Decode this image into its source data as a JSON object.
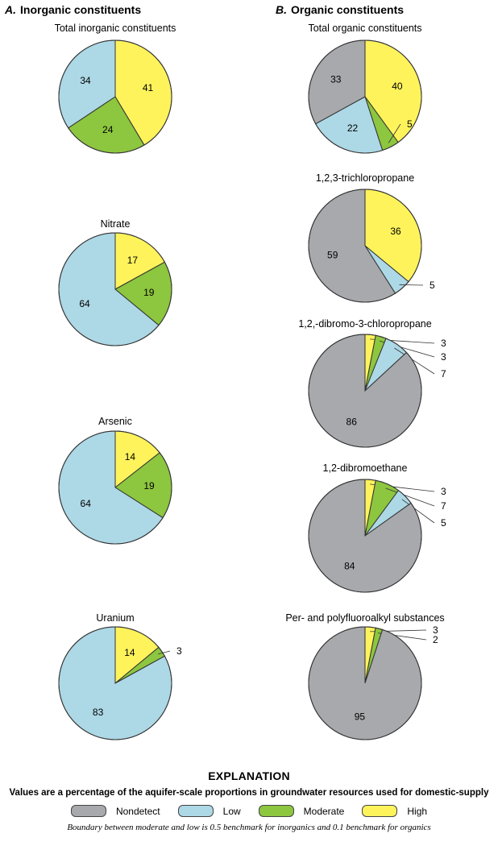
{
  "panels": {
    "a": {
      "letter": "A.",
      "title": "Inorganic constituents"
    },
    "b": {
      "letter": "B.",
      "title": "Organic constituents"
    }
  },
  "category_colors": {
    "Nondetect": "#a7a9ac",
    "Low": "#add8e6",
    "Moderate": "#8dc63f",
    "High": "#fff35c"
  },
  "chart_data": [
    {
      "type": "pie",
      "panel": "a",
      "title": "Total inorganic constituents",
      "slices": [
        {
          "category": "High",
          "value": 41,
          "label": "41"
        },
        {
          "category": "Moderate",
          "value": 24,
          "label": "24"
        },
        {
          "category": "Low",
          "value": 34,
          "label": "34"
        },
        {
          "category": "Nondetect",
          "value": 0,
          "label": ""
        }
      ]
    },
    {
      "type": "pie",
      "panel": "a",
      "title": "Nitrate",
      "slices": [
        {
          "category": "High",
          "value": 17,
          "label": "17"
        },
        {
          "category": "Moderate",
          "value": 19,
          "label": "19"
        },
        {
          "category": "Low",
          "value": 64,
          "label": "64"
        }
      ]
    },
    {
      "type": "pie",
      "panel": "a",
      "title": "Arsenic",
      "slices": [
        {
          "category": "High",
          "value": 14,
          "label": "14"
        },
        {
          "category": "Moderate",
          "value": 19,
          "label": "19"
        },
        {
          "category": "Low",
          "value": 64,
          "label": "64"
        }
      ]
    },
    {
      "type": "pie",
      "panel": "a",
      "title": "Uranium",
      "slices": [
        {
          "category": "High",
          "value": 14,
          "label": "14"
        },
        {
          "category": "Moderate",
          "value": 3,
          "label": "3"
        },
        {
          "category": "Low",
          "value": 83,
          "label": "83"
        }
      ]
    },
    {
      "type": "pie",
      "panel": "b",
      "title": "Total organic constituents",
      "slices": [
        {
          "category": "High",
          "value": 40,
          "label": "40"
        },
        {
          "category": "Moderate",
          "value": 5,
          "label": "5"
        },
        {
          "category": "Low",
          "value": 22,
          "label": "22"
        },
        {
          "category": "Nondetect",
          "value": 33,
          "label": "33"
        }
      ]
    },
    {
      "type": "pie",
      "panel": "b",
      "title": "1,2,3-trichloropropane",
      "slices": [
        {
          "category": "High",
          "value": 36,
          "label": "36"
        },
        {
          "category": "Moderate",
          "value": 0,
          "label": ""
        },
        {
          "category": "Low",
          "value": 5,
          "label": "5"
        },
        {
          "category": "Nondetect",
          "value": 59,
          "label": "59"
        }
      ]
    },
    {
      "type": "pie",
      "panel": "b",
      "title": "1,2,-dibromo-3-chloropropane",
      "slices": [
        {
          "category": "High",
          "value": 3,
          "label": "3"
        },
        {
          "category": "Moderate",
          "value": 3,
          "label": "3"
        },
        {
          "category": "Low",
          "value": 7,
          "label": "7"
        },
        {
          "category": "Nondetect",
          "value": 86,
          "label": "86"
        }
      ]
    },
    {
      "type": "pie",
      "panel": "b",
      "title": "1,2-dibromoethane",
      "slices": [
        {
          "category": "High",
          "value": 3,
          "label": "3"
        },
        {
          "category": "Moderate",
          "value": 7,
          "label": "7"
        },
        {
          "category": "Low",
          "value": 5,
          "label": "5"
        },
        {
          "category": "Nondetect",
          "value": 84,
          "label": "84"
        }
      ]
    },
    {
      "type": "pie",
      "panel": "b",
      "title": "Per- and polyfluoroalkyl substances",
      "slices": [
        {
          "category": "High",
          "value": 3,
          "label": "3"
        },
        {
          "category": "Moderate",
          "value": 2,
          "label": "2"
        },
        {
          "category": "Low",
          "value": 0,
          "label": ""
        },
        {
          "category": "Nondetect",
          "value": 95,
          "label": "95"
        }
      ]
    }
  ],
  "explanation": {
    "title": "EXPLANATION",
    "subtitle": "Values are a percentage of the aquifer-scale proportions in groundwater resources used for domestic-supply",
    "legend": [
      {
        "label": "Nondetect",
        "color": "#a7a9ac"
      },
      {
        "label": "Low",
        "color": "#add8e6"
      },
      {
        "label": "Moderate",
        "color": "#8dc63f"
      },
      {
        "label": "High",
        "color": "#fff35c"
      }
    ],
    "note": "Boundary between moderate and low is 0.5 benchmark for inorganics and 0.1 benchmark for organics"
  }
}
